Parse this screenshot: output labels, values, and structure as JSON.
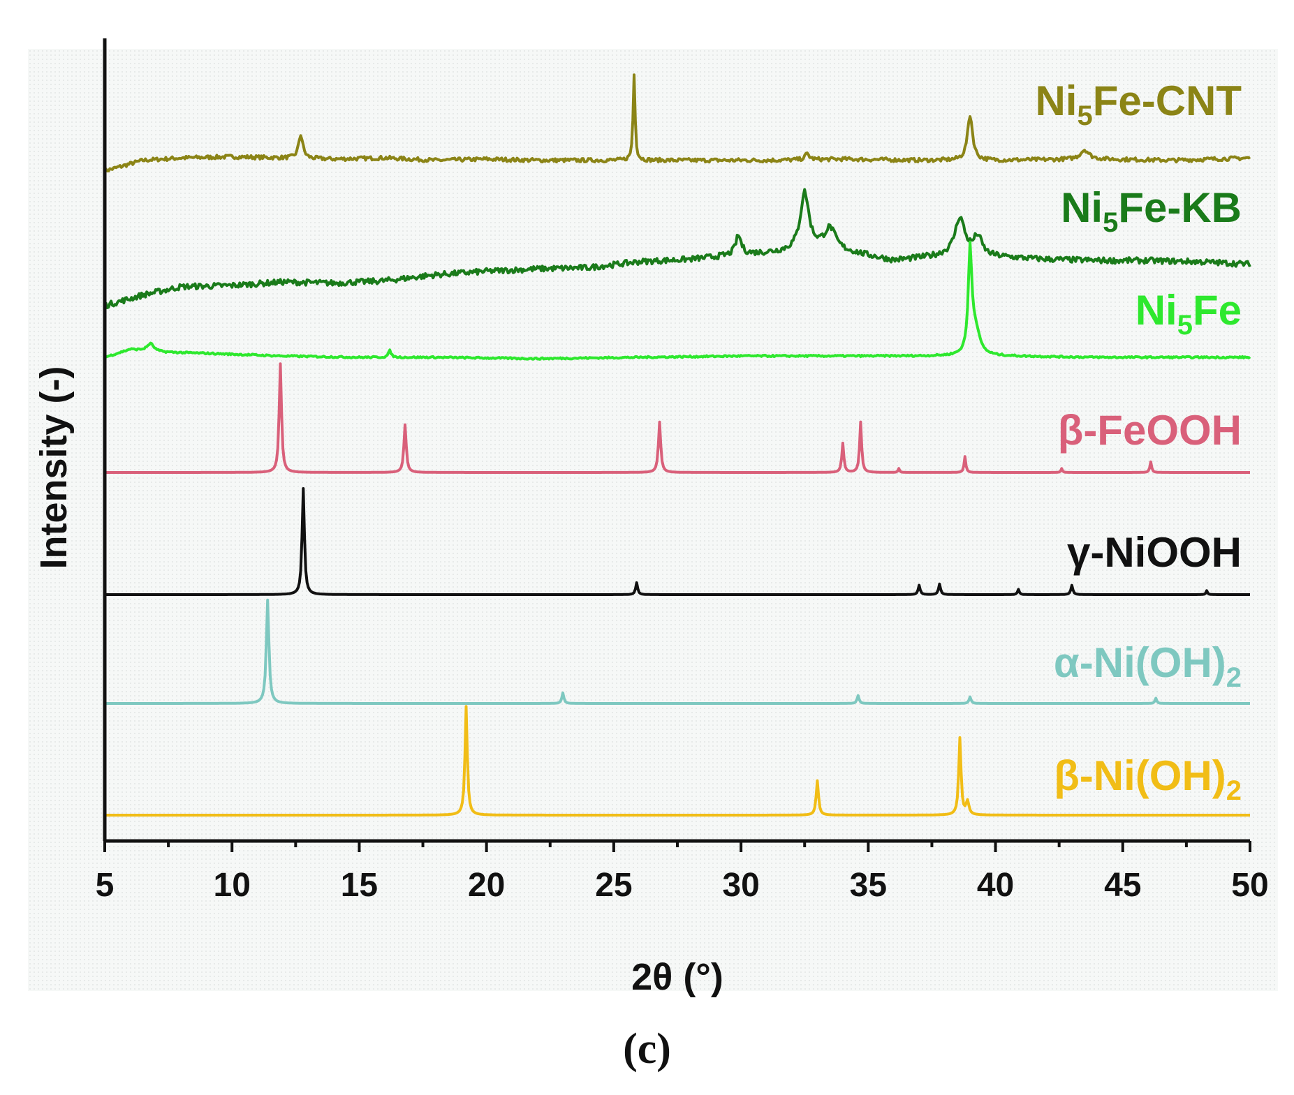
{
  "caption": "(c)",
  "chart_data": {
    "type": "line",
    "xlabel": "2θ (°)",
    "ylabel": "Intensity (-)",
    "xlim": [
      5,
      50
    ],
    "xticks": [
      "5",
      "10",
      "15",
      "20",
      "25",
      "30",
      "35",
      "40",
      "45",
      "50"
    ],
    "yticks": "none",
    "grid": false,
    "legend": "labels placed at right end of each trace",
    "series": [
      {
        "name": "Ni5Fe-CNT",
        "label_main": "Ni",
        "label_sub": "5",
        "label_rest": "Fe-CNT",
        "color": "#8b8416",
        "baseline_points": [
          [
            5,
            0.0
          ],
          [
            6.5,
            0.45
          ],
          [
            8,
            0.55
          ],
          [
            10,
            0.6
          ],
          [
            12,
            0.55
          ],
          [
            14,
            0.5
          ],
          [
            16,
            0.55
          ],
          [
            18,
            0.45
          ],
          [
            20,
            0.5
          ],
          [
            22,
            0.45
          ],
          [
            25,
            0.45
          ],
          [
            28,
            0.45
          ],
          [
            31,
            0.45
          ],
          [
            34,
            0.5
          ],
          [
            37,
            0.45
          ],
          [
            40,
            0.45
          ],
          [
            44,
            0.5
          ],
          [
            47,
            0.45
          ],
          [
            50,
            0.55
          ]
        ],
        "noise": 0.08,
        "peaks": [
          [
            12.7,
            1.0,
            0.15
          ],
          [
            25.8,
            3.6,
            0.07
          ],
          [
            32.6,
            0.25,
            0.15
          ],
          [
            39.0,
            1.9,
            0.18
          ],
          [
            43.5,
            0.4,
            0.3
          ]
        ]
      },
      {
        "name": "Ni5Fe-KB",
        "label_main": "Ni",
        "label_sub": "5",
        "label_rest": "Fe-KB",
        "color": "#1a7b1a",
        "baseline_points": [
          [
            5,
            0.0
          ],
          [
            6.5,
            0.45
          ],
          [
            8,
            0.8
          ],
          [
            10,
            0.85
          ],
          [
            12,
            1.0
          ],
          [
            14,
            0.95
          ],
          [
            16,
            1.05
          ],
          [
            18,
            1.3
          ],
          [
            20,
            1.45
          ],
          [
            22,
            1.55
          ],
          [
            24,
            1.6
          ],
          [
            26,
            1.85
          ],
          [
            28,
            1.95
          ],
          [
            30,
            2.15
          ],
          [
            31.5,
            2.25
          ],
          [
            33,
            2.4
          ],
          [
            34.5,
            2.2
          ],
          [
            36,
            1.9
          ],
          [
            38,
            2.1
          ],
          [
            40,
            2.05
          ],
          [
            42,
            1.95
          ],
          [
            44,
            1.9
          ],
          [
            46,
            1.9
          ],
          [
            48,
            1.85
          ],
          [
            50,
            1.75
          ]
        ],
        "noise": 0.12,
        "peaks": [
          [
            29.9,
            0.8,
            0.2
          ],
          [
            32.5,
            2.4,
            0.3
          ],
          [
            33.5,
            0.9,
            0.4
          ],
          [
            38.6,
            1.6,
            0.35
          ],
          [
            39.3,
            0.8,
            0.3
          ]
        ]
      },
      {
        "name": "Ni5Fe",
        "label_main": "Ni",
        "label_sub": "5",
        "label_rest": "Fe",
        "color": "#2ee82e",
        "baseline_points": [
          [
            5,
            0.0
          ],
          [
            6,
            0.3
          ],
          [
            7,
            0.2
          ],
          [
            9,
            0.15
          ],
          [
            12,
            0.05
          ],
          [
            15,
            0.0
          ],
          [
            18,
            0.0
          ],
          [
            22,
            -0.05
          ],
          [
            26,
            0.0
          ],
          [
            30,
            0.05
          ],
          [
            34,
            0.05
          ],
          [
            38,
            0.05
          ],
          [
            40,
            0.05
          ],
          [
            44,
            0.0
          ],
          [
            50,
            0.0
          ]
        ],
        "noise": 0.03,
        "peaks": [
          [
            6.8,
            0.3,
            0.25
          ],
          [
            16.2,
            0.25,
            0.1
          ],
          [
            39.0,
            3.8,
            0.12
          ],
          [
            39.2,
            1.0,
            0.3
          ]
        ]
      },
      {
        "name": "β-FeOOH",
        "label_main": "β-FeOOH",
        "label_sub": "",
        "label_rest": "",
        "color": "#d9607a",
        "baseline_points": [
          [
            5,
            0.0
          ],
          [
            50,
            0.0
          ]
        ],
        "noise": 0.0,
        "peaks": [
          [
            11.9,
            4.1,
            0.08
          ],
          [
            16.8,
            1.8,
            0.08
          ],
          [
            26.8,
            1.9,
            0.08
          ],
          [
            34.0,
            1.1,
            0.07
          ],
          [
            34.7,
            1.9,
            0.07
          ],
          [
            36.2,
            0.15,
            0.05
          ],
          [
            38.8,
            0.6,
            0.06
          ],
          [
            42.6,
            0.15,
            0.05
          ],
          [
            46.1,
            0.4,
            0.06
          ]
        ]
      },
      {
        "name": "γ-NiOOH",
        "label_main": "γ-NiOOH",
        "label_sub": "",
        "label_rest": "",
        "color": "#111111",
        "baseline_points": [
          [
            5,
            0.0
          ],
          [
            50,
            0.0
          ]
        ],
        "noise": 0.0,
        "peaks": [
          [
            12.8,
            4.0,
            0.08
          ],
          [
            25.9,
            0.45,
            0.07
          ],
          [
            37.0,
            0.35,
            0.07
          ],
          [
            37.8,
            0.4,
            0.07
          ],
          [
            40.9,
            0.2,
            0.06
          ],
          [
            43.0,
            0.35,
            0.07
          ],
          [
            48.3,
            0.15,
            0.05
          ]
        ]
      },
      {
        "name": "α-Ni(OH)2",
        "label_main": "α-Ni(OH)",
        "label_sub": "2",
        "label_rest": "",
        "color": "#7ec8c0",
        "baseline_points": [
          [
            5,
            0.0
          ],
          [
            50,
            0.0
          ]
        ],
        "noise": 0.0,
        "peaks": [
          [
            11.4,
            3.9,
            0.09
          ],
          [
            23.0,
            0.4,
            0.07
          ],
          [
            34.6,
            0.3,
            0.07
          ],
          [
            39.0,
            0.25,
            0.07
          ],
          [
            46.3,
            0.2,
            0.06
          ]
        ]
      },
      {
        "name": "β-Ni(OH)2",
        "label_main": "β-Ni(OH)",
        "label_sub": "2",
        "label_rest": "",
        "color": "#f1bd16",
        "baseline_points": [
          [
            5,
            0.0
          ],
          [
            50,
            0.0
          ]
        ],
        "noise": 0.0,
        "peaks": [
          [
            19.2,
            4.1,
            0.08
          ],
          [
            33.0,
            1.3,
            0.08
          ],
          [
            38.6,
            2.9,
            0.08
          ],
          [
            38.9,
            0.5,
            0.1
          ]
        ]
      }
    ]
  }
}
